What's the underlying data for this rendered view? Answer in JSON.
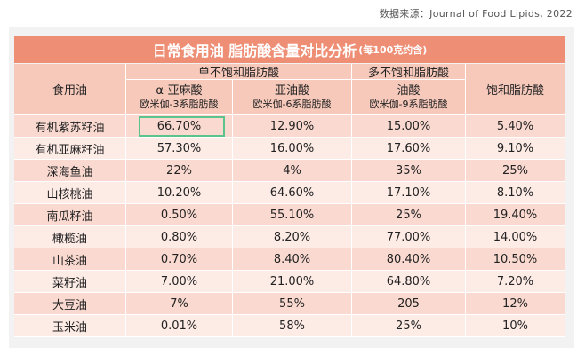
{
  "source": "数据来源：Journal of Food Lipids, 2022",
  "title": {
    "main": "日常食用油 脂肪酸含量对比分析",
    "sub": "(每100克约含)"
  },
  "headers": {
    "oil": "食用油",
    "mono_group": "单不饱和脂肪酸",
    "poly_group": "多不饱和脂肪酸",
    "saturated": "饱和脂肪酸",
    "alpha": "α-亚麻酸",
    "alpha_sub": "欧米伽-3系脂肪酸",
    "linoleic": "亚油酸",
    "linoleic_sub": "欧米伽-6系脂肪酸",
    "oleic": "油酸",
    "oleic_sub": "欧米伽-9系脂肪酸"
  },
  "rows": [
    {
      "oil": "有机紫苏籽油",
      "alpha": "66.70%",
      "linoleic": "12.90%",
      "oleic": "15.00%",
      "saturated": "5.40%"
    },
    {
      "oil": "有机亚麻籽油",
      "alpha": "57.30%",
      "linoleic": "16.00%",
      "oleic": "17.60%",
      "saturated": "9.10%"
    },
    {
      "oil": "深海鱼油",
      "alpha": "22%",
      "linoleic": "4%",
      "oleic": "35%",
      "saturated": "25%"
    },
    {
      "oil": "山核桃油",
      "alpha": "10.20%",
      "linoleic": "64.60%",
      "oleic": "17.10%",
      "saturated": "8.10%"
    },
    {
      "oil": "南瓜籽油",
      "alpha": "0.50%",
      "linoleic": "55.10%",
      "oleic": "25%",
      "saturated": "19.40%"
    },
    {
      "oil": "橄榄油",
      "alpha": "0.80%",
      "linoleic": "8.20%",
      "oleic": "77.00%",
      "saturated": "14.00%"
    },
    {
      "oil": "山茶油",
      "alpha": "0.70%",
      "linoleic": "8.40%",
      "oleic": "80.40%",
      "saturated": "10.50%"
    },
    {
      "oil": "菜籽油",
      "alpha": "7.00%",
      "linoleic": "21.00%",
      "oleic": "64.80%",
      "saturated": "7.20%"
    },
    {
      "oil": "大豆油",
      "alpha": "7%",
      "linoleic": "55%",
      "oleic": "205",
      "saturated": "12%"
    },
    {
      "oil": "玉米油",
      "alpha": "0.01%",
      "linoleic": "58%",
      "oleic": "25%",
      "saturated": "10%"
    }
  ],
  "colors": {
    "title_bg": "#ee8e75",
    "header_bg": "#f7c9bb",
    "row_odd": "#fadad0",
    "row_even": "#fdebe5",
    "highlight_border": "#5cc48a"
  }
}
